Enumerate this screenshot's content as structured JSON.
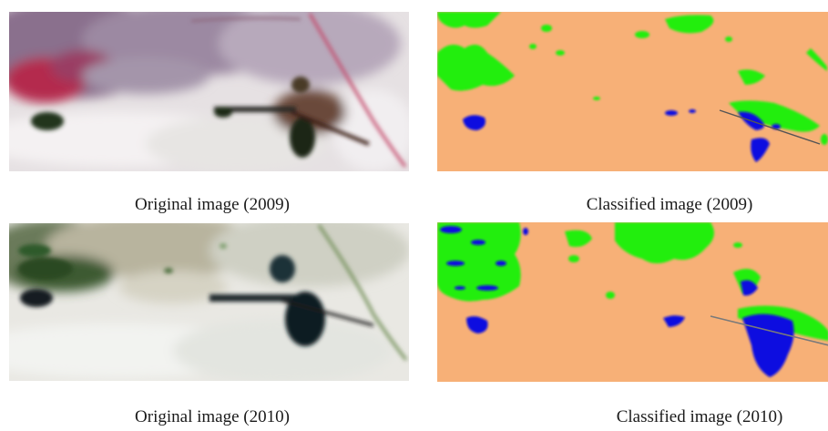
{
  "figure": {
    "captions": {
      "orig_2009": "Original image (2009)",
      "class_2009": "Classified image (2009)",
      "orig_2010": "Original image (2010)",
      "class_2010": "Classified image (2010)"
    },
    "classification_colors": {
      "land": "#F7B077",
      "vegetation": "#22EE11",
      "water": "#1010E0"
    }
  }
}
